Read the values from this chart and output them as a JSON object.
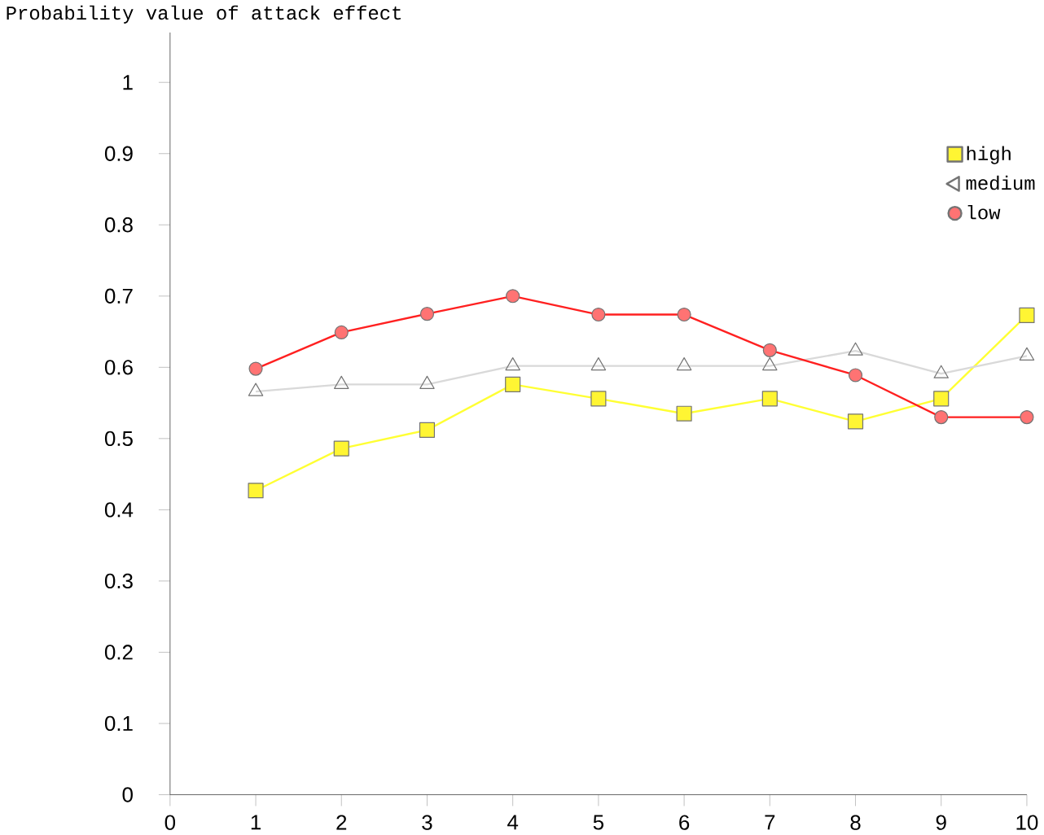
{
  "chart_data": {
    "type": "line",
    "ylabel": "Probability value of attack effect",
    "x": [
      1,
      2,
      3,
      4,
      5,
      6,
      7,
      8,
      9,
      10
    ],
    "series": [
      {
        "name": "high",
        "color": "#ffff33",
        "marker": "square",
        "values": [
          0.427,
          0.486,
          0.512,
          0.576,
          0.556,
          0.535,
          0.556,
          0.524,
          0.556,
          0.673
        ]
      },
      {
        "name": "medium",
        "color": "#d9d9d9",
        "marker": "triangle",
        "values": [
          0.566,
          0.576,
          0.576,
          0.602,
          0.602,
          0.602,
          0.602,
          0.623,
          0.591,
          0.616
        ]
      },
      {
        "name": "low",
        "color": "#ff2020",
        "marker": "circle",
        "values": [
          0.598,
          0.649,
          0.675,
          0.7,
          0.674,
          0.674,
          0.624,
          0.589,
          0.53,
          0.53
        ]
      }
    ],
    "xlim": [
      0,
      10
    ],
    "xticks": [
      0,
      1,
      2,
      3,
      4,
      5,
      6,
      7,
      8,
      9,
      10
    ],
    "ylim": [
      0,
      1.07
    ],
    "yticks": [
      0,
      0.1,
      0.2,
      0.3,
      0.4,
      0.5,
      0.6,
      0.7,
      0.8,
      0.9,
      1
    ],
    "legend": "top right",
    "grid": false
  }
}
